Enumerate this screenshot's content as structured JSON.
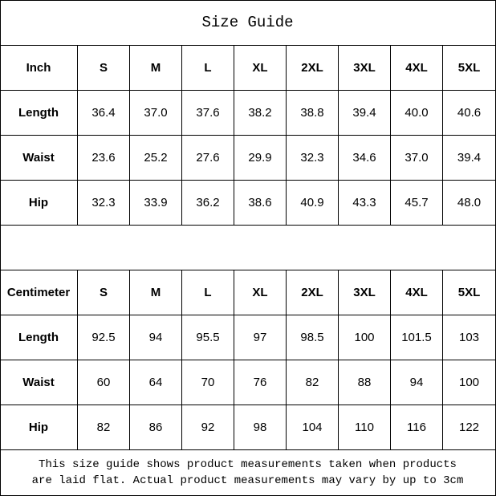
{
  "title": "Size Guide",
  "sizes": [
    "S",
    "M",
    "L",
    "XL",
    "2XL",
    "3XL",
    "4XL",
    "5XL"
  ],
  "inch": {
    "unit_label": "Inch",
    "rows": [
      {
        "label": "Length",
        "values": [
          "36.4",
          "37.0",
          "37.6",
          "38.2",
          "38.8",
          "39.4",
          "40.0",
          "40.6"
        ]
      },
      {
        "label": "Waist",
        "values": [
          "23.6",
          "25.2",
          "27.6",
          "29.9",
          "32.3",
          "34.6",
          "37.0",
          "39.4"
        ]
      },
      {
        "label": "Hip",
        "values": [
          "32.3",
          "33.9",
          "36.2",
          "38.6",
          "40.9",
          "43.3",
          "45.7",
          "48.0"
        ]
      }
    ]
  },
  "centimeter": {
    "unit_label": "Centimeter",
    "rows": [
      {
        "label": "Length",
        "values": [
          "92.5",
          "94",
          "95.5",
          "97",
          "98.5",
          "100",
          "101.5",
          "103"
        ]
      },
      {
        "label": "Waist",
        "values": [
          "60",
          "64",
          "70",
          "76",
          "82",
          "88",
          "94",
          "100"
        ]
      },
      {
        "label": "Hip",
        "values": [
          "82",
          "86",
          "92",
          "98",
          "104",
          "110",
          "116",
          "122"
        ]
      }
    ]
  },
  "note": {
    "line1": "This size guide shows product measurements taken when products",
    "line2": "are laid flat. Actual product measurements may vary by up to 3cm"
  }
}
